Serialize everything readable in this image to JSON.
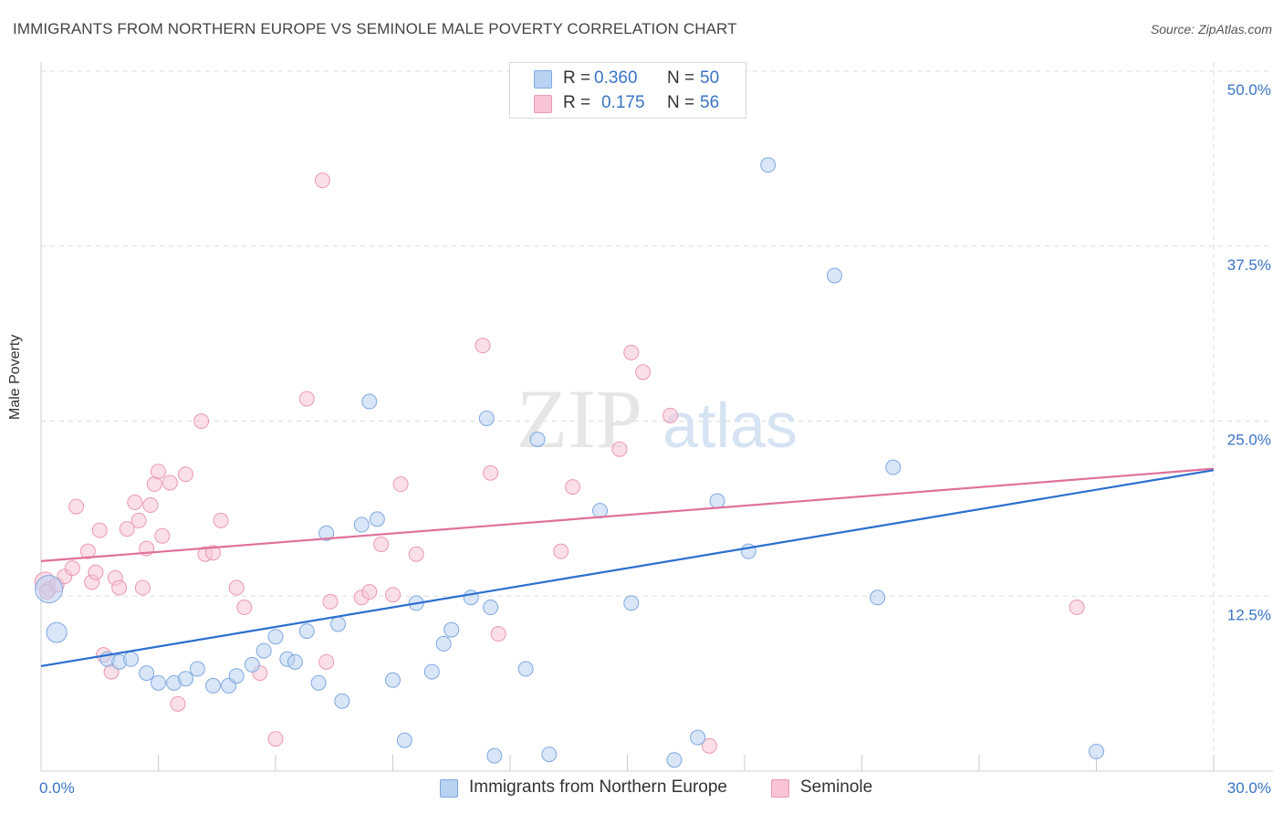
{
  "header": {
    "title": "IMMIGRANTS FROM NORTHERN EUROPE VS SEMINOLE MALE POVERTY CORRELATION CHART",
    "source": "Source: ZipAtlas.com"
  },
  "watermark": {
    "zip": "ZIP",
    "atlas": "atlas"
  },
  "legend": {
    "r_label": "R =",
    "n_label": "N =",
    "series": [
      {
        "name": "Immigrants from Northern Europe",
        "r": "0.360",
        "n": "50",
        "color": "#6fa0de"
      },
      {
        "name": "Seminole",
        "r": "0.175",
        "n": "56",
        "color": "#f08fae"
      }
    ]
  },
  "colors": {
    "blue_fill": "#b9d2f2",
    "blue_stroke": "#7ea8df",
    "blue_line": "#2a6fcf",
    "pink_fill": "#f8c4d3",
    "pink_stroke": "#eb98b3",
    "pink_line": "#e0709a",
    "tick_text": "#3a74c4",
    "grid": "#dcdcdc"
  },
  "chart_data": {
    "type": "scatter",
    "title": "IMMIGRANTS FROM NORTHERN EUROPE VS SEMINOLE MALE POVERTY CORRELATION CHART",
    "xlabel": "",
    "ylabel": "Male Poverty",
    "xlim": [
      0,
      30
    ],
    "ylim": [
      0,
      50
    ],
    "x_tick_labels": [
      "0.0%",
      "30.0%"
    ],
    "y_ticks": [
      12.5,
      25.0,
      37.5,
      50.0
    ],
    "y_tick_labels": [
      "12.5%",
      "25.0%",
      "37.5%",
      "50.0%"
    ],
    "grid": true,
    "legend_position": "top-center",
    "series": [
      {
        "name": "Immigrants from Northern Europe",
        "r": 0.36,
        "n": 50,
        "trend": {
          "x0": 0,
          "y0": 7.5,
          "x1": 30,
          "y1": 21.5
        },
        "points": [
          {
            "x": 0.2,
            "y": 13.0,
            "s": 3
          },
          {
            "x": 0.4,
            "y": 9.9,
            "s": 2
          },
          {
            "x": 1.7,
            "y": 8.0,
            "s": 1
          },
          {
            "x": 2.0,
            "y": 7.8,
            "s": 1
          },
          {
            "x": 2.3,
            "y": 8.0,
            "s": 1
          },
          {
            "x": 2.7,
            "y": 7.0,
            "s": 1
          },
          {
            "x": 3.0,
            "y": 6.3,
            "s": 1
          },
          {
            "x": 3.4,
            "y": 6.3,
            "s": 1
          },
          {
            "x": 3.7,
            "y": 6.6,
            "s": 1
          },
          {
            "x": 4.0,
            "y": 7.3,
            "s": 1
          },
          {
            "x": 4.4,
            "y": 6.1,
            "s": 1
          },
          {
            "x": 4.8,
            "y": 6.1,
            "s": 1
          },
          {
            "x": 5.0,
            "y": 6.8,
            "s": 1
          },
          {
            "x": 5.4,
            "y": 7.6,
            "s": 1
          },
          {
            "x": 5.7,
            "y": 8.6,
            "s": 1
          },
          {
            "x": 6.0,
            "y": 9.6,
            "s": 1
          },
          {
            "x": 6.3,
            "y": 8.0,
            "s": 1
          },
          {
            "x": 6.5,
            "y": 7.8,
            "s": 1
          },
          {
            "x": 6.8,
            "y": 10.0,
            "s": 1
          },
          {
            "x": 7.1,
            "y": 6.3,
            "s": 1
          },
          {
            "x": 7.3,
            "y": 17.0,
            "s": 1
          },
          {
            "x": 7.6,
            "y": 10.5,
            "s": 1
          },
          {
            "x": 7.7,
            "y": 5.0,
            "s": 1
          },
          {
            "x": 8.2,
            "y": 17.6,
            "s": 1
          },
          {
            "x": 8.4,
            "y": 26.4,
            "s": 1
          },
          {
            "x": 8.6,
            "y": 18.0,
            "s": 1
          },
          {
            "x": 9.0,
            "y": 6.5,
            "s": 1
          },
          {
            "x": 9.3,
            "y": 2.2,
            "s": 1
          },
          {
            "x": 9.6,
            "y": 12.0,
            "s": 1
          },
          {
            "x": 10.0,
            "y": 7.1,
            "s": 1
          },
          {
            "x": 10.3,
            "y": 9.1,
            "s": 1
          },
          {
            "x": 10.5,
            "y": 10.1,
            "s": 1
          },
          {
            "x": 11.0,
            "y": 12.4,
            "s": 1
          },
          {
            "x": 11.4,
            "y": 25.2,
            "s": 1
          },
          {
            "x": 11.5,
            "y": 11.7,
            "s": 1
          },
          {
            "x": 11.6,
            "y": 1.1,
            "s": 1
          },
          {
            "x": 12.4,
            "y": 7.3,
            "s": 1
          },
          {
            "x": 12.7,
            "y": 23.7,
            "s": 1
          },
          {
            "x": 13.0,
            "y": 1.2,
            "s": 1
          },
          {
            "x": 14.3,
            "y": 18.6,
            "s": 1
          },
          {
            "x": 15.1,
            "y": 12.0,
            "s": 1
          },
          {
            "x": 16.2,
            "y": 0.8,
            "s": 1
          },
          {
            "x": 16.8,
            "y": 2.4,
            "s": 1
          },
          {
            "x": 17.3,
            "y": 19.3,
            "s": 1
          },
          {
            "x": 18.1,
            "y": 15.7,
            "s": 1
          },
          {
            "x": 18.6,
            "y": 43.3,
            "s": 1
          },
          {
            "x": 20.3,
            "y": 35.4,
            "s": 1
          },
          {
            "x": 21.4,
            "y": 12.4,
            "s": 1
          },
          {
            "x": 21.8,
            "y": 21.7,
            "s": 1
          },
          {
            "x": 27.0,
            "y": 1.4,
            "s": 1
          }
        ]
      },
      {
        "name": "Seminole",
        "r": 0.175,
        "n": 56,
        "trend": {
          "x0": 0,
          "y0": 15.0,
          "x1": 30,
          "y1": 21.6
        },
        "points": [
          {
            "x": 0.1,
            "y": 13.5,
            "s": 2
          },
          {
            "x": 0.2,
            "y": 13.0,
            "s": 1
          },
          {
            "x": 0.4,
            "y": 13.3,
            "s": 1
          },
          {
            "x": 0.6,
            "y": 13.9,
            "s": 1
          },
          {
            "x": 0.8,
            "y": 14.5,
            "s": 1
          },
          {
            "x": 0.9,
            "y": 18.9,
            "s": 1
          },
          {
            "x": 1.2,
            "y": 15.7,
            "s": 1
          },
          {
            "x": 1.3,
            "y": 13.5,
            "s": 1
          },
          {
            "x": 1.4,
            "y": 14.2,
            "s": 1
          },
          {
            "x": 1.5,
            "y": 17.2,
            "s": 1
          },
          {
            "x": 1.6,
            "y": 8.3,
            "s": 1
          },
          {
            "x": 1.8,
            "y": 7.1,
            "s": 1
          },
          {
            "x": 1.9,
            "y": 13.8,
            "s": 1
          },
          {
            "x": 2.0,
            "y": 13.1,
            "s": 1
          },
          {
            "x": 2.2,
            "y": 17.3,
            "s": 1
          },
          {
            "x": 2.4,
            "y": 19.2,
            "s": 1
          },
          {
            "x": 2.5,
            "y": 17.9,
            "s": 1
          },
          {
            "x": 2.6,
            "y": 13.1,
            "s": 1
          },
          {
            "x": 2.7,
            "y": 15.9,
            "s": 1
          },
          {
            "x": 2.8,
            "y": 19.0,
            "s": 1
          },
          {
            "x": 2.9,
            "y": 20.5,
            "s": 1
          },
          {
            "x": 3.0,
            "y": 21.4,
            "s": 1
          },
          {
            "x": 3.1,
            "y": 16.8,
            "s": 1
          },
          {
            "x": 3.3,
            "y": 20.6,
            "s": 1
          },
          {
            "x": 3.5,
            "y": 4.8,
            "s": 1
          },
          {
            "x": 3.7,
            "y": 21.2,
            "s": 1
          },
          {
            "x": 4.1,
            "y": 25.0,
            "s": 1
          },
          {
            "x": 4.2,
            "y": 15.5,
            "s": 1
          },
          {
            "x": 4.4,
            "y": 15.6,
            "s": 1
          },
          {
            "x": 4.6,
            "y": 17.9,
            "s": 1
          },
          {
            "x": 5.0,
            "y": 13.1,
            "s": 1
          },
          {
            "x": 5.2,
            "y": 11.7,
            "s": 1
          },
          {
            "x": 5.6,
            "y": 7.0,
            "s": 1
          },
          {
            "x": 6.0,
            "y": 2.3,
            "s": 1
          },
          {
            "x": 6.8,
            "y": 26.6,
            "s": 1
          },
          {
            "x": 7.2,
            "y": 42.2,
            "s": 1
          },
          {
            "x": 7.3,
            "y": 7.8,
            "s": 1
          },
          {
            "x": 7.4,
            "y": 12.1,
            "s": 1
          },
          {
            "x": 8.2,
            "y": 12.4,
            "s": 1
          },
          {
            "x": 8.4,
            "y": 12.8,
            "s": 1
          },
          {
            "x": 8.7,
            "y": 16.2,
            "s": 1
          },
          {
            "x": 9.0,
            "y": 12.6,
            "s": 1
          },
          {
            "x": 9.2,
            "y": 20.5,
            "s": 1
          },
          {
            "x": 9.6,
            "y": 15.5,
            "s": 1
          },
          {
            "x": 11.3,
            "y": 30.4,
            "s": 1
          },
          {
            "x": 11.5,
            "y": 21.3,
            "s": 1
          },
          {
            "x": 11.7,
            "y": 9.8,
            "s": 1
          },
          {
            "x": 13.3,
            "y": 15.7,
            "s": 1
          },
          {
            "x": 13.6,
            "y": 20.3,
            "s": 1
          },
          {
            "x": 14.8,
            "y": 23.0,
            "s": 1
          },
          {
            "x": 15.1,
            "y": 29.9,
            "s": 1
          },
          {
            "x": 15.4,
            "y": 28.5,
            "s": 1
          },
          {
            "x": 16.1,
            "y": 25.4,
            "s": 1
          },
          {
            "x": 17.1,
            "y": 1.8,
            "s": 1
          },
          {
            "x": 26.5,
            "y": 11.7,
            "s": 1
          },
          {
            "x": 0.15,
            "y": 12.8,
            "s": 1
          }
        ]
      }
    ]
  }
}
